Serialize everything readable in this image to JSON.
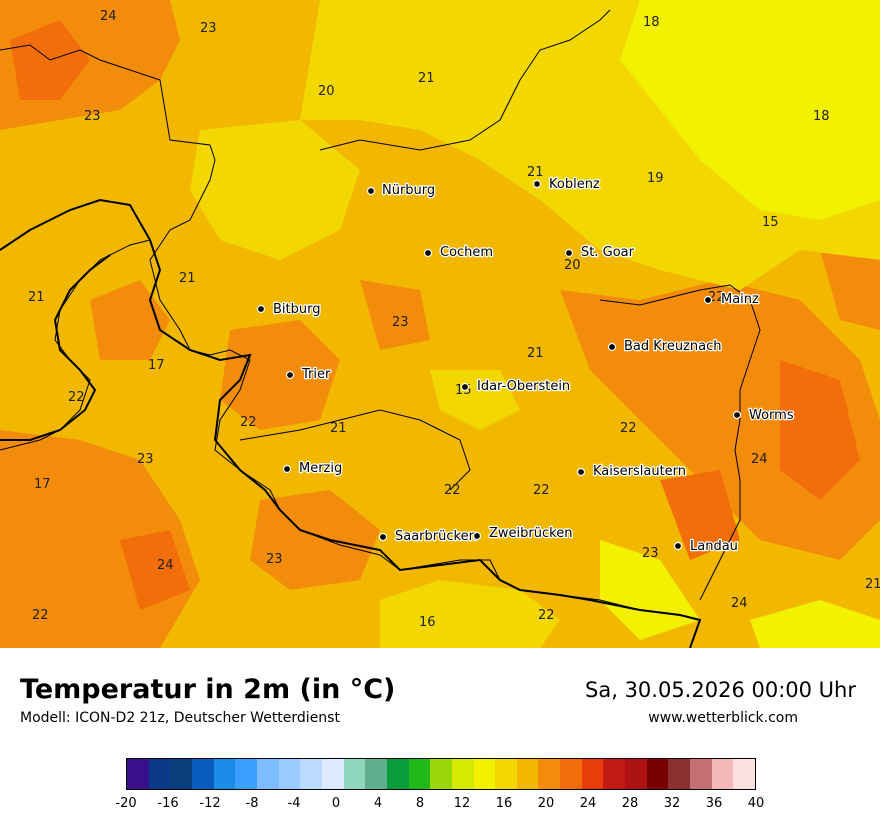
{
  "title": "Temperatur in 2m (in °C)",
  "subtitle": "Modell: ICON-D2 21z, Deutscher Wetterdienst",
  "datetime": "Sa, 30.05.2026 00:00 Uhr",
  "source": "www.wetterblick.com",
  "legend": {
    "colors": [
      "#3a0f8c",
      "#0b3a8a",
      "#083f7c",
      "#0a5cbf",
      "#1d8be8",
      "#3aa0ff",
      "#7dbcff",
      "#9ccbff",
      "#bcdcff",
      "#dceaff",
      "#8ed6bc",
      "#5fae8e",
      "#0a9c3a",
      "#22b81a",
      "#9ad80a",
      "#d6ea00",
      "#f2f200",
      "#f2d800",
      "#f2b800",
      "#f28c0a",
      "#f26e0a",
      "#e83c0a",
      "#c41a14",
      "#ad1212",
      "#7a0000",
      "#8a3030",
      "#c47070",
      "#f4b8b8",
      "#fde0e0"
    ],
    "ticks": [
      "-20",
      "-16",
      "-12",
      "-8",
      "-4",
      "0",
      "4",
      "8",
      "12",
      "16",
      "20",
      "24",
      "28",
      "32",
      "36",
      "40"
    ]
  },
  "cities": [
    {
      "name": "Nürburg"
    },
    {
      "name": "Koblenz"
    },
    {
      "name": "Cochem"
    },
    {
      "name": "St. Goar"
    },
    {
      "name": "Bitburg"
    },
    {
      "name": "Mainz"
    },
    {
      "name": "Bad Kreuznach"
    },
    {
      "name": "Trier"
    },
    {
      "name": "Idar-Oberstein"
    },
    {
      "name": "Worms"
    },
    {
      "name": "Merzig"
    },
    {
      "name": "Kaiserslautern"
    },
    {
      "name": "Saarbrücken"
    },
    {
      "name": "Zweibrücken"
    },
    {
      "name": "Landau"
    }
  ],
  "values": [
    "24",
    "23",
    "18",
    "21",
    "20",
    "23",
    "18",
    "21",
    "19",
    "15",
    "20",
    "21",
    "21",
    "22",
    "23",
    "17",
    "21",
    "22",
    "22",
    "21",
    "15",
    "22",
    "24",
    "17",
    "23",
    "22",
    "22",
    "24",
    "23",
    "23",
    "22",
    "16",
    "22",
    "24",
    "21"
  ]
}
